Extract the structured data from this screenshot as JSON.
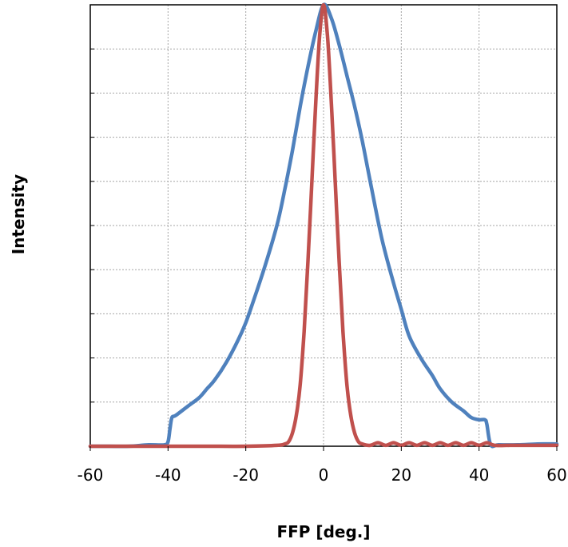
{
  "chart_data": {
    "type": "line",
    "title": "",
    "xlabel": "FFP  [deg.]",
    "ylabel": "Intensity",
    "xlim": [
      -60,
      60
    ],
    "ylim": [
      0,
      1
    ],
    "x_ticks": [
      "-60",
      "-40",
      "-20",
      "0",
      "20",
      "40",
      "60"
    ],
    "x_tick_values": [
      -60,
      -40,
      -20,
      0,
      20,
      40,
      60
    ],
    "y_gridlines": [
      0.1,
      0.2,
      0.3,
      0.4,
      0.5,
      0.6,
      0.7,
      0.8,
      0.9
    ],
    "grid": true,
    "legend": "none",
    "series": [
      {
        "color": "#4f81bd",
        "x": [
          -60,
          -55,
          -50,
          -45,
          -41,
          -40,
          -39.5,
          -39,
          -38,
          -35,
          -32,
          -30,
          -28,
          -25,
          -22,
          -20,
          -18,
          -15,
          -12,
          -10,
          -8,
          -6,
          -4,
          -2,
          0,
          2,
          4,
          6,
          8,
          10,
          12,
          15,
          18,
          20,
          22,
          25,
          28,
          30,
          33,
          36,
          38,
          40,
          41.5,
          42,
          43,
          45,
          50,
          55,
          60
        ],
        "y": [
          0.0,
          0.0,
          0.0,
          0.003,
          0.003,
          0.01,
          0.04,
          0.065,
          0.07,
          0.09,
          0.11,
          0.13,
          0.15,
          0.19,
          0.24,
          0.28,
          0.33,
          0.41,
          0.5,
          0.58,
          0.67,
          0.77,
          0.86,
          0.94,
          1.0,
          0.97,
          0.91,
          0.84,
          0.77,
          0.69,
          0.6,
          0.47,
          0.37,
          0.31,
          0.25,
          0.2,
          0.16,
          0.13,
          0.1,
          0.08,
          0.065,
          0.06,
          0.06,
          0.05,
          0.003,
          0.003,
          0.003,
          0.005,
          0.005
        ]
      },
      {
        "color": "#c0504d",
        "x": [
          -60,
          -50,
          -40,
          -30,
          -20,
          -12,
          -10,
          -9,
          -8,
          -7,
          -6,
          -5,
          -4,
          -3,
          -2,
          -1,
          0,
          1,
          2,
          3,
          4,
          5,
          6,
          7,
          8,
          9,
          10,
          12,
          14,
          16,
          18,
          20,
          22,
          24,
          26,
          28,
          30,
          32,
          34,
          36,
          38,
          40,
          42,
          44,
          48,
          52,
          56,
          60
        ],
        "y": [
          0.0,
          0.0,
          0.0,
          0.0,
          0.0,
          0.002,
          0.005,
          0.01,
          0.03,
          0.07,
          0.14,
          0.26,
          0.42,
          0.6,
          0.78,
          0.93,
          1.0,
          0.93,
          0.78,
          0.6,
          0.42,
          0.26,
          0.14,
          0.07,
          0.03,
          0.01,
          0.005,
          0.002,
          0.008,
          0.002,
          0.008,
          0.002,
          0.008,
          0.002,
          0.008,
          0.002,
          0.008,
          0.002,
          0.008,
          0.002,
          0.008,
          0.002,
          0.008,
          0.002,
          0.002,
          0.002,
          0.002,
          0.002
        ]
      }
    ]
  }
}
